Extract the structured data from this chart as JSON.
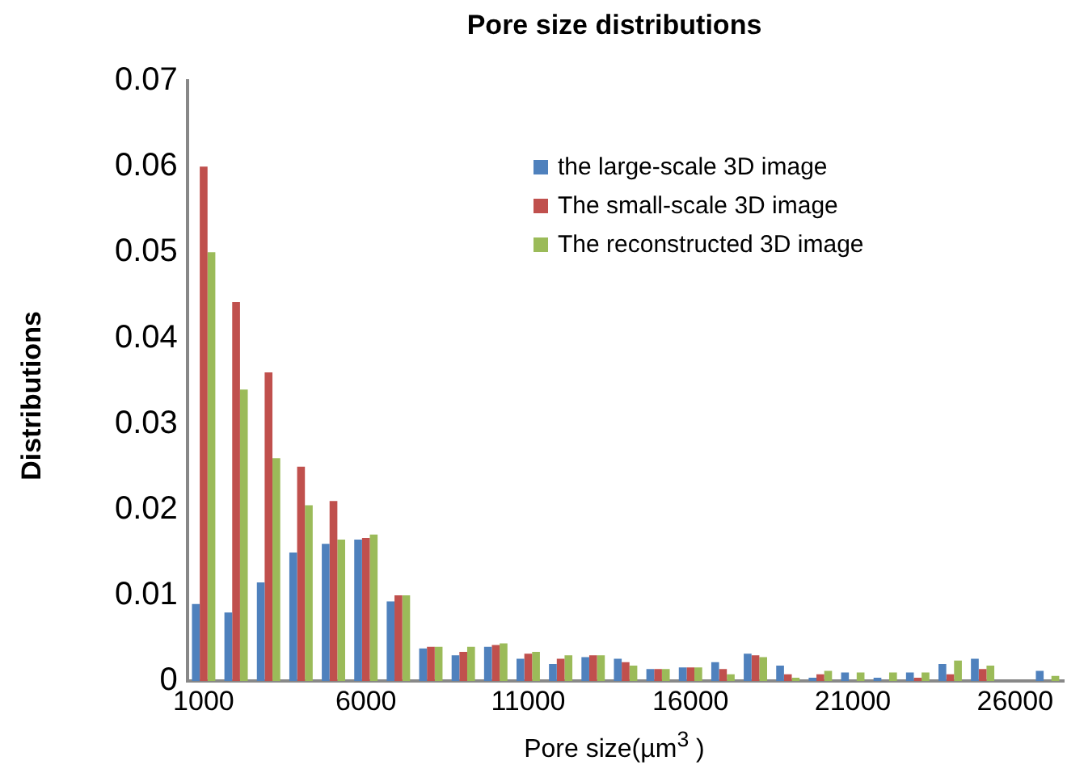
{
  "chart_data": {
    "type": "bar",
    "title": "Pore size distributions",
    "xlabel": "Pore size(µm$^{3}$ )",
    "ylabel": "Distributions",
    "categories": [
      "1000",
      null,
      null,
      null,
      null,
      "6000",
      null,
      null,
      null,
      null,
      "11000",
      null,
      null,
      null,
      null,
      "16000",
      null,
      null,
      null,
      null,
      "21000",
      null,
      null,
      null,
      null,
      "26000",
      null
    ],
    "series": [
      {
        "name": "the large-scale 3D image",
        "color": "#4f81bd",
        "values": [
          0.009,
          0.008,
          0.0115,
          0.015,
          0.016,
          0.0165,
          0.0093,
          0.0038,
          0.003,
          0.004,
          0.0026,
          0.002,
          0.0028,
          0.0026,
          0.0014,
          0.0016,
          0.0022,
          0.0032,
          0.0018,
          0.0004,
          0.001,
          0.0004,
          0.001,
          0.002,
          0.0026,
          0,
          0.0012
        ]
      },
      {
        "name": "The small-scale 3D image",
        "color": "#c0504d",
        "values": [
          0.06,
          0.0442,
          0.036,
          0.025,
          0.021,
          0.0167,
          0.01,
          0.004,
          0.0034,
          0.0042,
          0.0032,
          0.0026,
          0.003,
          0.0022,
          0.0014,
          0.0016,
          0.0014,
          0.003,
          0.0008,
          0.0008,
          0,
          0,
          0.0004,
          0.0008,
          0.0014,
          0,
          0
        ]
      },
      {
        "name": "The reconstructed 3D image",
        "color": "#9bbb59",
        "values": [
          0.05,
          0.034,
          0.026,
          0.0205,
          0.0165,
          0.0171,
          0.01,
          0.004,
          0.004,
          0.0044,
          0.0034,
          0.003,
          0.003,
          0.0018,
          0.0014,
          0.0016,
          0.0008,
          0.0028,
          0.0004,
          0.0012,
          0.001,
          0.001,
          0.001,
          0.0024,
          0.0018,
          0,
          0.0006
        ]
      }
    ],
    "ylim": [
      0,
      0.07
    ],
    "yticks": [
      0,
      0.01,
      0.02,
      0.03,
      0.04,
      0.05,
      0.06,
      0.07
    ],
    "grid": false,
    "legend": "top right"
  }
}
